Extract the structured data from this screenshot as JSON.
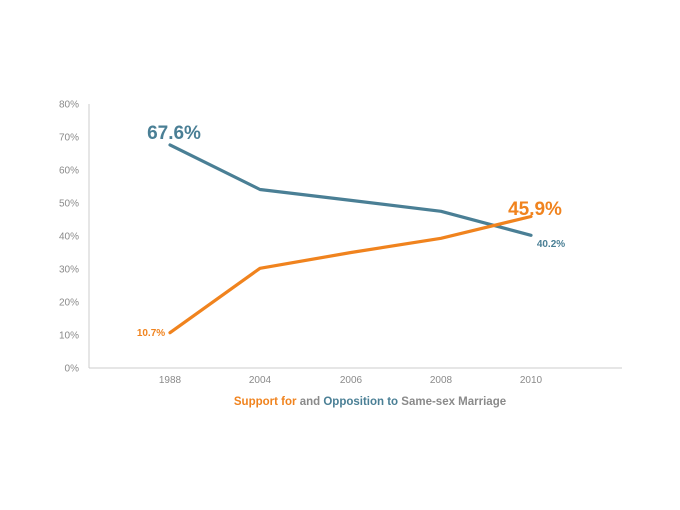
{
  "chart_data": {
    "type": "line",
    "title": "Support for and Opposition to Same-sex Marriage",
    "title_parts": {
      "support": "Support for",
      "and": "and",
      "opposition": "Opposition to",
      "rest": "Same-sex Marriage"
    },
    "categories": [
      "1988",
      "2004",
      "2006",
      "2008",
      "2010"
    ],
    "series": [
      {
        "name": "Opposition",
        "color": "#4a7f95",
        "values": [
          67.6,
          54.1,
          50.8,
          47.5,
          40.2
        ],
        "labels": {
          "first": "67.6%",
          "last": "40.2%"
        }
      },
      {
        "name": "Support",
        "color": "#f0831e",
        "values": [
          10.7,
          30.2,
          35.0,
          39.3,
          45.9
        ],
        "labels": {
          "first": "10.7%",
          "last": "45.9%"
        }
      }
    ],
    "y_ticks": [
      "0%",
      "10%",
      "20%",
      "30%",
      "40%",
      "50%",
      "60%",
      "70%",
      "80%"
    ],
    "ylim": [
      0,
      80
    ],
    "xlabel": "",
    "ylabel": "",
    "axis_color": "#cccccc",
    "label_color": "#8a8a8a"
  }
}
